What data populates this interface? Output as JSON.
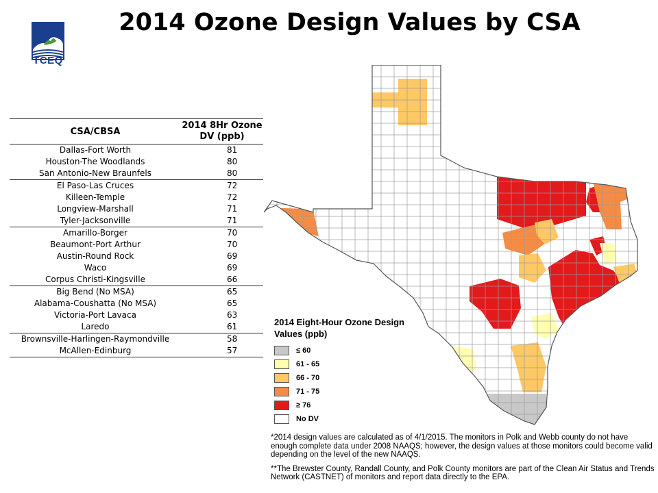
{
  "title": "2014 Ozone Design Values by CSA",
  "logo": {
    "caption": "TCEQ"
  },
  "table": {
    "headers": [
      "CSA/CBSA",
      "2014 8Hr Ozone DV (ppb)"
    ],
    "groups": [
      [
        {
          "name": "Dallas-Fort Worth",
          "value": "81"
        },
        {
          "name": "Houston-The  Woodlands",
          "value": "80"
        },
        {
          "name": "San Antonio-New  Braunfels",
          "value": "80"
        }
      ],
      [
        {
          "name": "El Paso-Las Cruces",
          "value": "72"
        },
        {
          "name": "Killeen-Temple",
          "value": "72"
        },
        {
          "name": "Longview-Marshall",
          "value": "71"
        },
        {
          "name": "Tyler-Jacksonville",
          "value": "71"
        }
      ],
      [
        {
          "name": "Amarillo-Borger",
          "value": "70"
        },
        {
          "name": "Beaumont-Port Arthur",
          "value": "70"
        },
        {
          "name": "Austin-Round  Rock",
          "value": "69"
        },
        {
          "name": "Waco",
          "value": "69"
        },
        {
          "name": "Corpus Christi-Kingsville",
          "value": "66"
        }
      ],
      [
        {
          "name": "Big Bend (No MSA)",
          "value": "65"
        },
        {
          "name": "Alabama-Coushatta  (No MSA)",
          "value": "65"
        },
        {
          "name": "Victoria-Port Lavaca",
          "value": "63"
        },
        {
          "name": "Laredo",
          "value": "61"
        }
      ],
      [
        {
          "name": "Brownsville-Harlingen-Raymondville",
          "value": "58"
        },
        {
          "name": "McAllen-Edinburg",
          "value": "57"
        }
      ]
    ]
  },
  "legend": {
    "title": "2014 Eight-Hour Ozone Design Values (ppb)",
    "items": [
      {
        "label": "≤ 60",
        "color": "#c8c8c8"
      },
      {
        "label": "61 - 65",
        "color": "#ffffb0"
      },
      {
        "label": "66 - 70",
        "color": "#fec865"
      },
      {
        "label": "71 - 75",
        "color": "#f58c45"
      },
      {
        "label": "≥ 76",
        "color": "#e31a1c"
      },
      {
        "label": "No DV",
        "color": "#ffffff"
      }
    ]
  },
  "notes": [
    "*2014 design values are calculated as of 4/1/2015. The monitors in Polk and Webb county do not have enough complete data under 2008 NAAQS; however, the design values at those monitors could become valid depending on the level of the new NAAQS.",
    "**The Brewster County, Randall County, and Polk County monitors are part of the Clean Air Status and Trends Network (CASTNET) of monitors and report data directly to the EPA."
  ]
}
